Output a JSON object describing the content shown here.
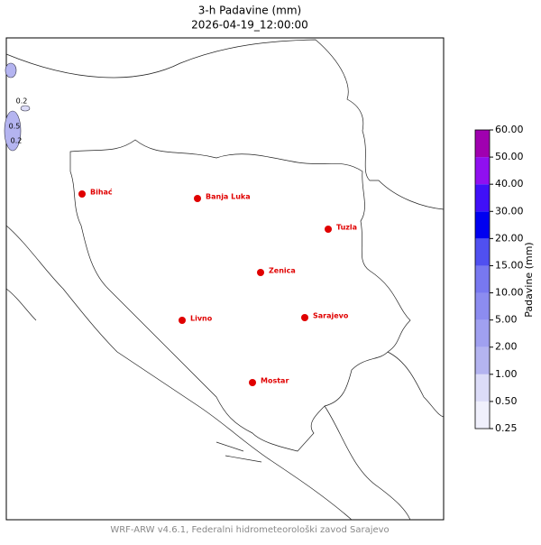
{
  "title": "3-h Padavine (mm)",
  "subtitle": "2026-04-19_12:00:00",
  "footer": "WRF-ARW v4.6.1, Federalni hidrometeorološki zavod Sarajevo",
  "cities": [
    "Bihać",
    "Banja Luka",
    "Tuzla",
    "Zenica",
    "Livno",
    "Sarajevo",
    "Mostar"
  ],
  "contour_labels": [
    "0.2",
    "0.5",
    "0.2"
  ],
  "colorbar": {
    "label": "Padavine (mm)",
    "levels": [
      {
        "value": 0.25,
        "label": "0.25"
      },
      {
        "value": 0.5,
        "label": "0.50"
      },
      {
        "value": 1,
        "label": "1.00"
      },
      {
        "value": 2,
        "label": "2.00"
      },
      {
        "value": 5,
        "label": "5.00"
      },
      {
        "value": 10,
        "label": "10.00"
      },
      {
        "value": 15,
        "label": "15.00"
      },
      {
        "value": 20,
        "label": "20.00"
      },
      {
        "value": 30,
        "label": "30.00"
      },
      {
        "value": 40,
        "label": "40.00"
      },
      {
        "value": 50,
        "label": "50.00"
      },
      {
        "value": 60,
        "label": "60.00"
      }
    ],
    "colors": [
      "#f0f0fc",
      "#dcdcf8",
      "#b4b4f0",
      "#a0a0f0",
      "#8c8cf0",
      "#7878f0",
      "#5050f0",
      "#0000f0",
      "#4010f8",
      "#9010f0",
      "#a000b0"
    ]
  }
}
